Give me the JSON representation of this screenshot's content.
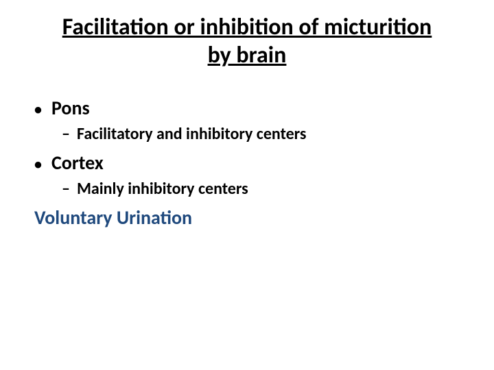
{
  "title_line1": "Facilitation or inhibition of micturition",
  "title_line2": "by brain",
  "items": [
    {
      "label": "Pons",
      "sub": "Facilitatory and inhibitory centers"
    },
    {
      "label": "Cortex",
      "sub": "Mainly inhibitory centers"
    }
  ],
  "voluntary": "Voluntary Urination",
  "colors": {
    "text": "#000000",
    "accent": "#1f497d",
    "background": "#ffffff"
  },
  "fonts": {
    "title_size_pt": 34,
    "l1_size_pt": 28,
    "l2_size_pt": 24,
    "weight": "bold"
  }
}
